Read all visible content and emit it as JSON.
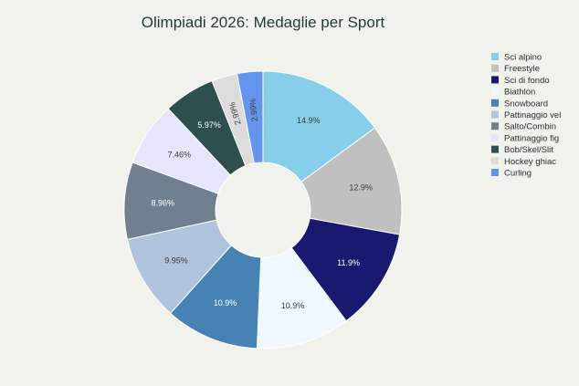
{
  "chart_data": {
    "type": "pie",
    "donut": true,
    "title": "Olimpiadi 2026: Medaglie per Sport",
    "categories": [
      "Sci alpino",
      "Freestyle",
      "Sci di fondo",
      "Biathlon",
      "Snowboard",
      "Pattinaggio vel",
      "Salto/Combin",
      "Pattinaggio fig",
      "Bob/Skel/Slit",
      "Hockey ghiac",
      "Curling"
    ],
    "values": [
      14.9,
      12.9,
      11.9,
      10.9,
      10.9,
      9.95,
      8.96,
      7.46,
      5.97,
      2.99,
      2.99
    ],
    "value_labels": [
      "14.9%",
      "12.9%",
      "11.9%",
      "10.9%",
      "10.9%",
      "9.95%",
      "8.96%",
      "7.46%",
      "5.97%",
      "2.99%",
      "2.99%"
    ],
    "colors": [
      "#87ceeb",
      "#c0c0c0",
      "#191970",
      "#f0f8ff",
      "#4682b4",
      "#b0c4de",
      "#708090",
      "#e6e6fa",
      "#2f4f4f",
      "#dcdcdc",
      "#6495ed"
    ],
    "label_dark_text": [
      true,
      true,
      false,
      true,
      false,
      true,
      false,
      true,
      false,
      true,
      true
    ],
    "legend_position": "right"
  }
}
